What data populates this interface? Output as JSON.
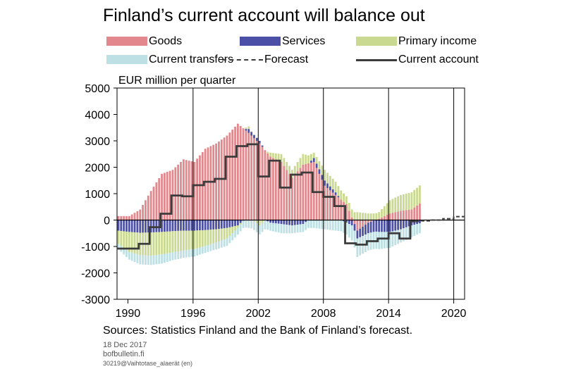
{
  "header": {
    "title": "Finland’s current account will balance out",
    "unit_label": "EUR million per quarter"
  },
  "legend": [
    {
      "key": "goods",
      "label": "Goods",
      "color": "#e2878c",
      "kind": "bar"
    },
    {
      "key": "services",
      "label": "Services",
      "color": "#4b4fa6",
      "kind": "bar"
    },
    {
      "key": "primary_income",
      "label": "Primary income",
      "color": "#c9d98f",
      "kind": "bar"
    },
    {
      "key": "current_transfers",
      "label": "Current transfers",
      "color": "#bde0e4",
      "kind": "bar"
    },
    {
      "key": "forecast",
      "label": "Forecast",
      "color": "#3c3c3c",
      "kind": "dashed-line"
    },
    {
      "key": "current_account",
      "label": "Current account",
      "color": "#3c3c3c",
      "kind": "line"
    }
  ],
  "footer": {
    "sources": "Sources: Statistics Finland and the Bank of Finland’s forecast.",
    "date": "18 Dec 2017",
    "site": "bofbulletin.fi",
    "code": "30219@Vaihtotase_alaerät  (en)"
  },
  "chart_data": {
    "type": "bar",
    "stacked": true,
    "x_unit": "year-quarter",
    "xlim": [
      1989,
      2021
    ],
    "ylim": [
      -3000,
      5000
    ],
    "y_ticks": [
      "5000",
      "4000",
      "3000",
      "2000",
      "1000",
      "0",
      "-1000",
      "-2000",
      "-3000"
    ],
    "y_tick_values": [
      5000,
      4000,
      3000,
      2000,
      1000,
      0,
      -1000,
      -2000,
      -3000
    ],
    "x_ticks": [
      "1990",
      "1996",
      "2002",
      "2008",
      "2014",
      "2020"
    ],
    "x_tick_values": [
      1990,
      1996,
      2002,
      2008,
      2014,
      2020
    ],
    "vertical_gridlines": [
      1996,
      2002,
      2008,
      2014,
      2020
    ],
    "horizontal_gridlines": false,
    "bars_start_year": 1989,
    "bars_end_year": 2017,
    "bar_series_order_positive": [
      "goods",
      "services",
      "primary_income",
      "current_transfers"
    ],
    "bar_series_order_negative": [
      "services",
      "primary_income",
      "current_transfers",
      "goods"
    ],
    "annual_anchors": [
      {
        "year": 1989,
        "goods": 150,
        "services": -400,
        "primary_income": -500,
        "current_transfers": -200
      },
      {
        "year": 1990,
        "goods": 150,
        "services": -450,
        "primary_income": -750,
        "current_transfers": -300
      },
      {
        "year": 1991,
        "goods": 400,
        "services": -480,
        "primary_income": -850,
        "current_transfers": -350
      },
      {
        "year": 1992,
        "goods": 1100,
        "services": -470,
        "primary_income": -880,
        "current_transfers": -350
      },
      {
        "year": 1993,
        "goods": 1750,
        "services": -450,
        "primary_income": -850,
        "current_transfers": -350
      },
      {
        "year": 1994,
        "goods": 1900,
        "services": -420,
        "primary_income": -800,
        "current_transfers": -300
      },
      {
        "year": 1995,
        "goods": 2300,
        "services": -400,
        "primary_income": -750,
        "current_transfers": -280
      },
      {
        "year": 1996,
        "goods": 2200,
        "services": -400,
        "primary_income": -700,
        "current_transfers": -280
      },
      {
        "year": 1997,
        "goods": 2700,
        "services": -380,
        "primary_income": -600,
        "current_transfers": -260
      },
      {
        "year": 1998,
        "goods": 2900,
        "services": -350,
        "primary_income": -500,
        "current_transfers": -260
      },
      {
        "year": 1999,
        "goods": 3200,
        "services": -300,
        "primary_income": -400,
        "current_transfers": -280
      },
      {
        "year": 2000,
        "goods": 3650,
        "services": -200,
        "primary_income": -100,
        "current_transfers": -250
      },
      {
        "year": 2001,
        "goods": 3300,
        "services": 150,
        "primary_income": 100,
        "current_transfers": -300
      },
      {
        "year": 2002,
        "goods": 2900,
        "services": 100,
        "primary_income": -200,
        "current_transfers": -350
      },
      {
        "year": 2003,
        "goods": 2400,
        "services": -100,
        "primary_income": 150,
        "current_transfers": -300
      },
      {
        "year": 2004,
        "goods": 2200,
        "services": -150,
        "primary_income": 300,
        "current_transfers": -350
      },
      {
        "year": 2005,
        "goods": 1600,
        "services": -200,
        "primary_income": 300,
        "current_transfers": -300
      },
      {
        "year": 2006,
        "goods": 2100,
        "services": -150,
        "primary_income": 400,
        "current_transfers": -300
      },
      {
        "year": 2007,
        "goods": 2200,
        "services": 150,
        "primary_income": 200,
        "current_transfers": -300
      },
      {
        "year": 2008,
        "goods": 1300,
        "services": 200,
        "primary_income": 400,
        "current_transfers": -350
      },
      {
        "year": 2009,
        "goods": 950,
        "services": 100,
        "primary_income": 400,
        "current_transfers": -400
      },
      {
        "year": 2010,
        "goods": 600,
        "services": -100,
        "primary_income": 300,
        "current_transfers": -450
      },
      {
        "year": 2011,
        "goods": -400,
        "services": -300,
        "primary_income": 300,
        "current_transfers": -700
      },
      {
        "year": 2012,
        "goods": -100,
        "services": -400,
        "primary_income": 250,
        "current_transfers": -650
      },
      {
        "year": 2013,
        "goods": 50,
        "services": -450,
        "primary_income": 250,
        "current_transfers": -650
      },
      {
        "year": 2014,
        "goods": 250,
        "services": -450,
        "primary_income": 500,
        "current_transfers": -600
      },
      {
        "year": 2015,
        "goods": 350,
        "services": -350,
        "primary_income": 600,
        "current_transfers": -500
      },
      {
        "year": 2016,
        "goods": 400,
        "services": -200,
        "primary_income": 650,
        "current_transfers": -450
      },
      {
        "year": 2017,
        "goods": 700,
        "services": -100,
        "primary_income": 700,
        "current_transfers": -350
      }
    ],
    "current_account_steps": [
      {
        "year": 1989,
        "value": -1080
      },
      {
        "year": 1991,
        "value": -900
      },
      {
        "year": 1992,
        "value": -270
      },
      {
        "year": 1993,
        "value": 240
      },
      {
        "year": 1994,
        "value": 930
      },
      {
        "year": 1995,
        "value": 900
      },
      {
        "year": 1996,
        "value": 1320
      },
      {
        "year": 1997,
        "value": 1450
      },
      {
        "year": 1998,
        "value": 1560
      },
      {
        "year": 1999,
        "value": 2400
      },
      {
        "year": 2000,
        "value": 2800
      },
      {
        "year": 2001,
        "value": 2870
      },
      {
        "year": 2002,
        "value": 1650
      },
      {
        "year": 2003,
        "value": 2250
      },
      {
        "year": 2004,
        "value": 1230
      },
      {
        "year": 2005,
        "value": 1720
      },
      {
        "year": 2006,
        "value": 1800
      },
      {
        "year": 2007,
        "value": 1060
      },
      {
        "year": 2008,
        "value": 880
      },
      {
        "year": 2009,
        "value": 530
      },
      {
        "year": 2010,
        "value": -880
      },
      {
        "year": 2011,
        "value": -930
      },
      {
        "year": 2012,
        "value": -800
      },
      {
        "year": 2013,
        "value": -700
      },
      {
        "year": 2014,
        "value": -500
      },
      {
        "year": 2015,
        "value": -700
      },
      {
        "year": 2016,
        "value": -50
      }
    ],
    "current_account_end_year": 2016.5,
    "forecast_steps": [
      {
        "year": 2016.5,
        "value": -50
      },
      {
        "year": 2017,
        "value": -30
      },
      {
        "year": 2018,
        "value": 0
      },
      {
        "year": 2019,
        "value": 50
      },
      {
        "year": 2020,
        "value": 130
      }
    ],
    "forecast_end_year": 2021
  }
}
